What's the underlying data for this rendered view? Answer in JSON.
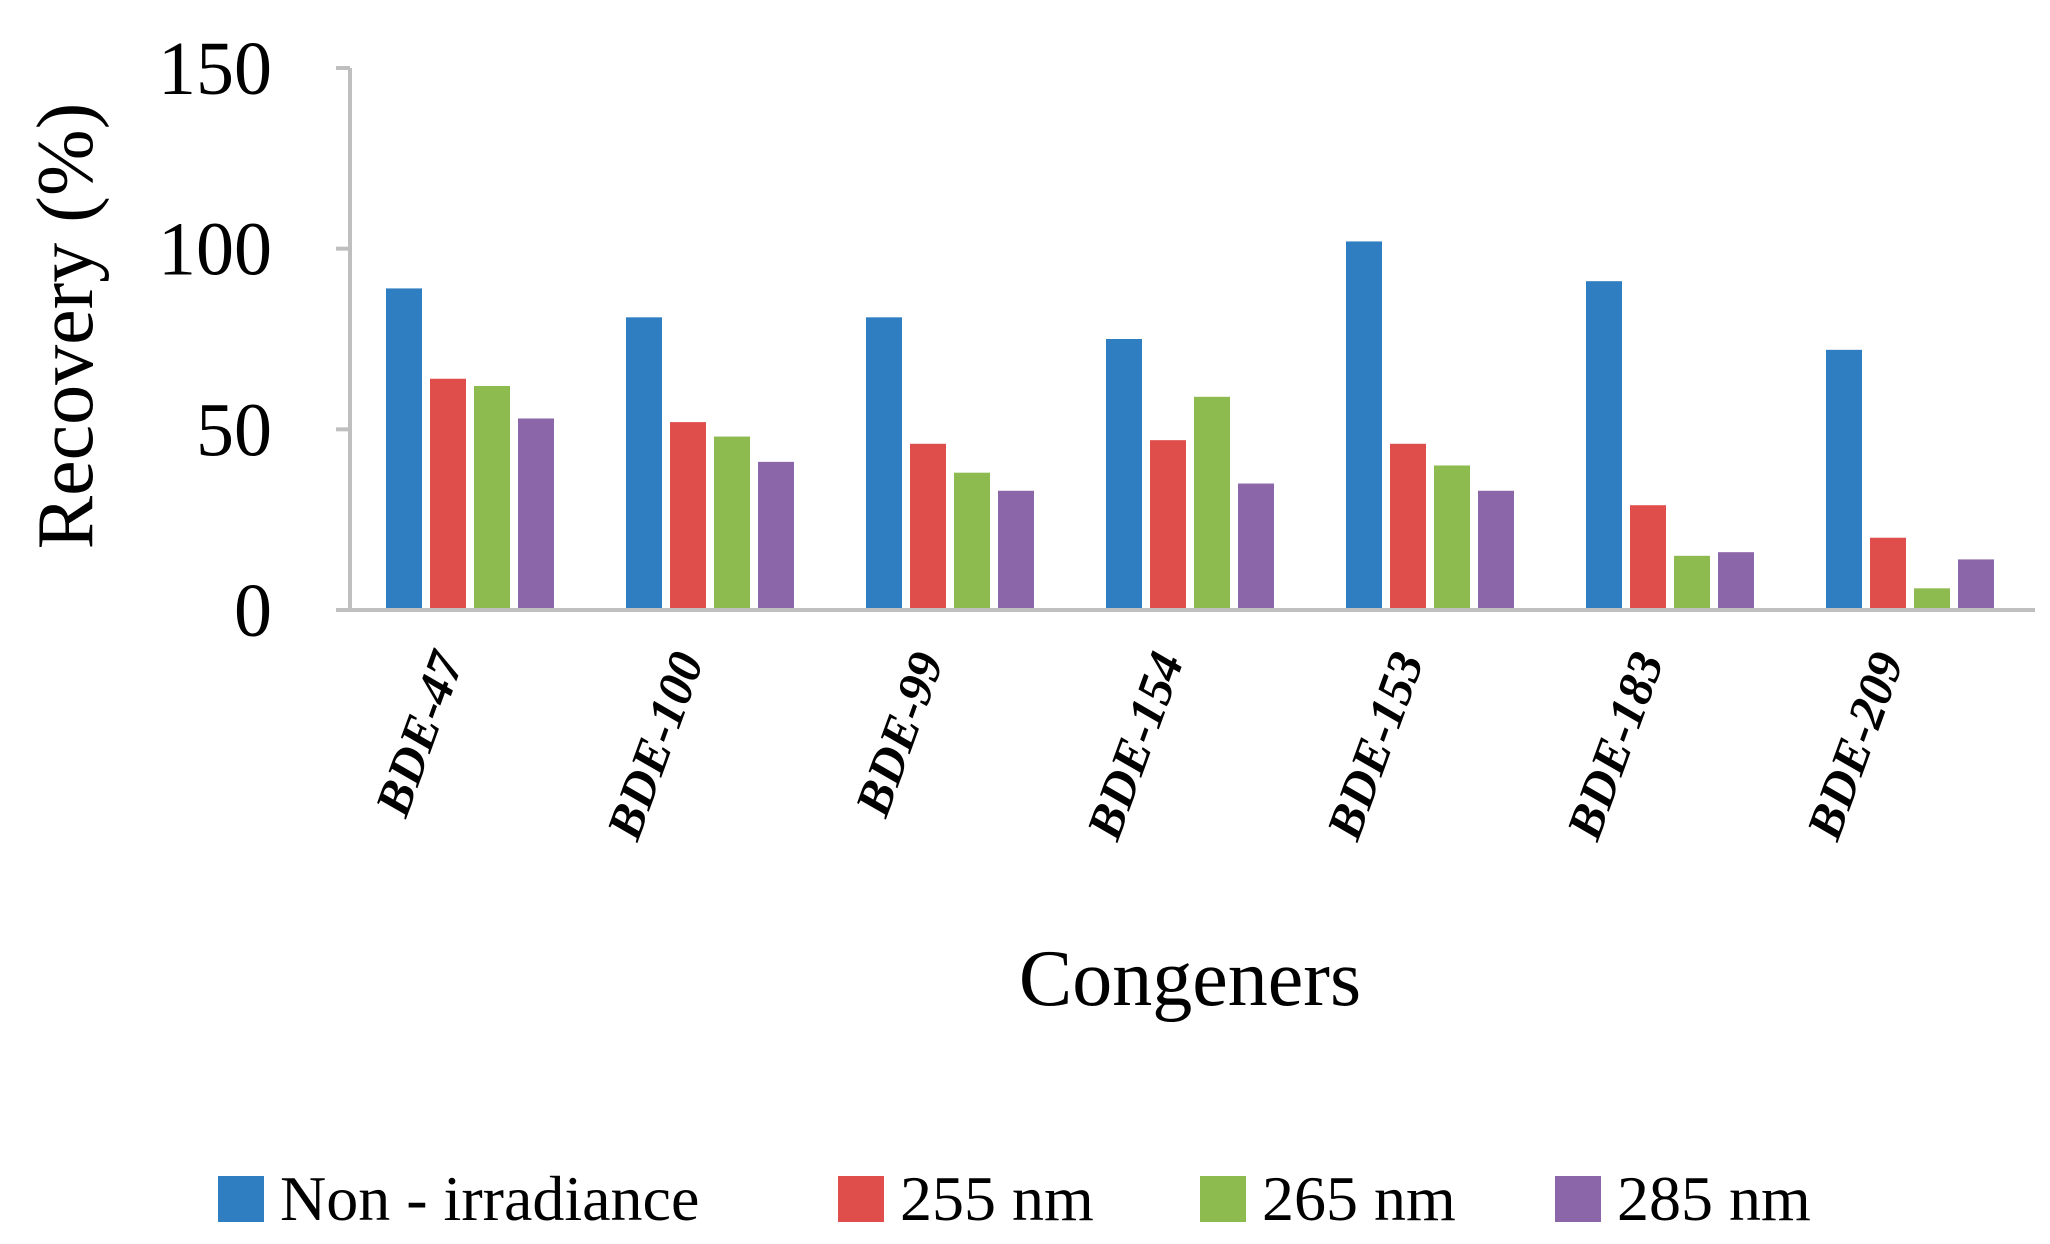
{
  "chart_data": {
    "type": "bar",
    "title": "",
    "xlabel": "Congeners",
    "ylabel": "Recovery (%)",
    "ylim": [
      0,
      150
    ],
    "yticks": [
      0,
      50,
      100,
      150
    ],
    "grid": false,
    "legend_position": "bottom",
    "categories": [
      "BDE-47",
      "BDE-100",
      "BDE-99",
      "BDE-154",
      "BDE-153",
      "BDE-183",
      "BDE-209"
    ],
    "series": [
      {
        "name": "Non - irradiance",
        "color": "#2E7EC1",
        "values": [
          89,
          81,
          81,
          75,
          102,
          91,
          72
        ]
      },
      {
        "name": "255 nm",
        "color": "#E04E4C",
        "values": [
          64,
          52,
          46,
          47,
          46,
          29,
          20
        ]
      },
      {
        "name": "265 nm",
        "color": "#8DBB50",
        "values": [
          62,
          48,
          38,
          59,
          40,
          15,
          6
        ]
      },
      {
        "name": "285 nm",
        "color": "#8B66A8",
        "values": [
          53,
          41,
          33,
          35,
          33,
          16,
          14
        ]
      }
    ]
  }
}
